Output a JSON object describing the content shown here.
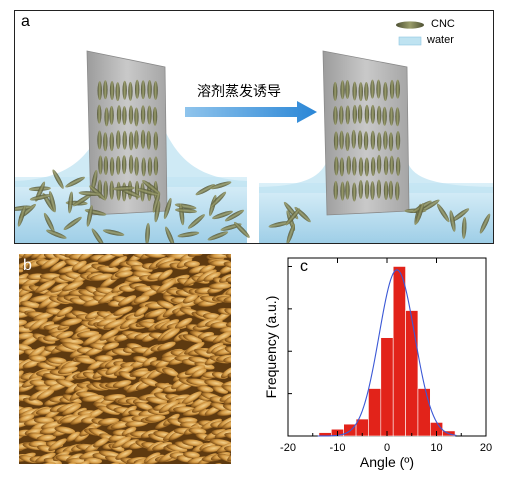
{
  "panel_a": {
    "label": "a",
    "legend": {
      "item1": "CNC",
      "item2": "water"
    },
    "arrow_label": "溶剂蒸发诱导"
  },
  "panel_b": {
    "label": "b"
  },
  "panel_c": {
    "label": "c"
  },
  "colors": {
    "cnc_rod": "#6b6e47",
    "water": "#bfe3f1",
    "substrate": "#b8b8b8",
    "arrow": "#3a98dc",
    "afm_light": "#e6b96a",
    "afm_dark": "#6a4210",
    "bar_fill": "#e2231a",
    "fit_line": "#3b58d6"
  },
  "chart_data": {
    "type": "bar",
    "title": "",
    "xlabel": "Angle (º)",
    "ylabel": "Frequency (a.u.)",
    "xlim": [
      -20,
      20
    ],
    "ylim": [
      0,
      1.05
    ],
    "x_ticks": [
      "-20",
      "-10",
      "0",
      "10",
      "20"
    ],
    "bin_width": 2.5,
    "bin_centers": [
      -12.5,
      -10,
      -7.5,
      -5,
      -2.5,
      0,
      2.5,
      5,
      7.5,
      10,
      12.5
    ],
    "values": [
      0.02,
      0.04,
      0.07,
      0.1,
      0.28,
      0.58,
      1.0,
      0.74,
      0.28,
      0.08,
      0.03
    ],
    "fit": {
      "type": "gaussian",
      "center": 2.0,
      "sigma": 3.6,
      "peak": 0.98
    },
    "grid": false,
    "legend": "none"
  }
}
